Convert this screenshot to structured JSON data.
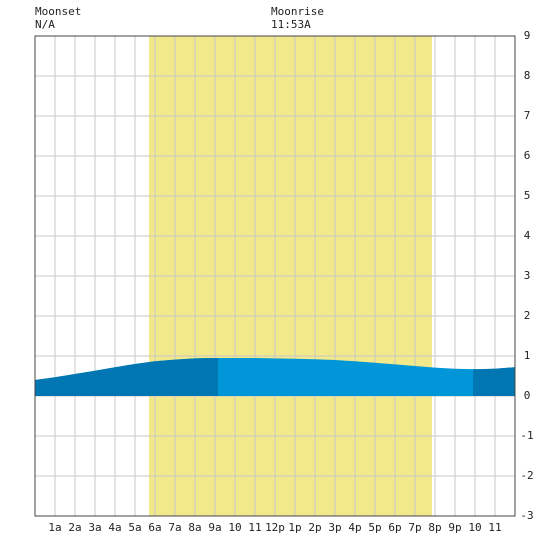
{
  "chart_data": {
    "type": "area",
    "moonset": {
      "label": "Moonset",
      "time": "N/A"
    },
    "moonrise": {
      "label": "Moonrise",
      "time": "11:53A"
    },
    "x": [
      0,
      1,
      2,
      3,
      4,
      5,
      6,
      7,
      8,
      9,
      10,
      11,
      12,
      13,
      14,
      15,
      16,
      17,
      18,
      19,
      20,
      21,
      22,
      23,
      24
    ],
    "values": [
      0.4,
      0.47,
      0.55,
      0.63,
      0.72,
      0.8,
      0.87,
      0.91,
      0.94,
      0.95,
      0.95,
      0.95,
      0.94,
      0.93,
      0.92,
      0.9,
      0.87,
      0.83,
      0.79,
      0.75,
      0.71,
      0.68,
      0.67,
      0.68,
      0.72
    ],
    "color": "#0096d8",
    "rising_color": "#0076b2",
    "rising_periods": [
      [
        0,
        9.15
      ],
      [
        21.9,
        24
      ]
    ],
    "daylight": [
      5.7,
      19.85
    ],
    "daylight_color": "#f2e98a",
    "xlim": [
      0,
      24
    ],
    "xticks": [
      {
        "value": 1,
        "label": "1a"
      },
      {
        "value": 2,
        "label": "2a"
      },
      {
        "value": 3,
        "label": "3a"
      },
      {
        "value": 4,
        "label": "4a"
      },
      {
        "value": 5,
        "label": "5a"
      },
      {
        "value": 6,
        "label": "6a"
      },
      {
        "value": 7,
        "label": "7a"
      },
      {
        "value": 8,
        "label": "8a"
      },
      {
        "value": 9,
        "label": "9a"
      },
      10,
      11,
      {
        "value": 12,
        "label": "12p"
      },
      {
        "value": 13,
        "label": "1p"
      },
      {
        "value": 14,
        "label": "2p"
      },
      {
        "value": 15,
        "label": "3p"
      },
      {
        "value": 16,
        "label": "4p"
      },
      {
        "value": 17,
        "label": "5p"
      },
      {
        "value": 18,
        "label": "6p"
      },
      {
        "value": 19,
        "label": "7p"
      },
      {
        "value": 20,
        "label": "8p"
      },
      {
        "value": 21,
        "label": "9p"
      },
      {
        "value": 22,
        "label": "10"
      },
      {
        "value": 23,
        "label": "11"
      }
    ],
    "ylim": [
      -3,
      9
    ],
    "yticks": [
      9,
      8,
      7,
      6,
      5,
      4,
      3,
      2,
      1,
      0,
      -1,
      -2,
      -3
    ],
    "grid": true
  }
}
